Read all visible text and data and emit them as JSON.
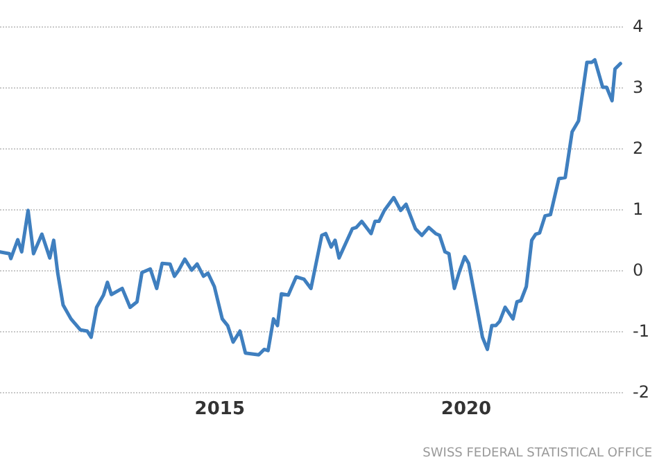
{
  "chart_data": {
    "type": "line",
    "x": [
      2010.54,
      2010.73,
      2010.76,
      2010.9,
      2010.98,
      2011.11,
      2011.22,
      2011.39,
      2011.55,
      2011.63,
      2011.71,
      2011.82,
      2011.98,
      2012.17,
      2012.31,
      2012.39,
      2012.5,
      2012.64,
      2012.72,
      2012.8,
      2013.02,
      2013.18,
      2013.32,
      2013.42,
      2013.59,
      2013.72,
      2013.83,
      2013.99,
      2014.08,
      2014.16,
      2014.29,
      2014.43,
      2014.54,
      2014.67,
      2014.76,
      2014.89,
      2015.05,
      2015.16,
      2015.27,
      2015.41,
      2015.52,
      2015.79,
      2015.9,
      2015.98,
      2016.09,
      2016.17,
      2016.25,
      2016.39,
      2016.55,
      2016.71,
      2016.85,
      2017.07,
      2017.15,
      2017.26,
      2017.34,
      2017.42,
      2017.69,
      2017.77,
      2017.88,
      2018.07,
      2018.15,
      2018.23,
      2018.34,
      2018.53,
      2018.67,
      2018.78,
      2018.97,
      2019.1,
      2019.24,
      2019.38,
      2019.46,
      2019.57,
      2019.65,
      2019.76,
      2019.86,
      2019.97,
      2020.05,
      2020.19,
      2020.33,
      2020.43,
      2020.52,
      2020.6,
      2020.68,
      2020.79,
      2020.95,
      2021.03,
      2021.11,
      2021.22,
      2021.33,
      2021.41,
      2021.49,
      2021.6,
      2021.71,
      2021.88,
      2022.01,
      2022.15,
      2022.28,
      2022.45,
      2022.55,
      2022.61,
      2022.77,
      2022.85,
      2022.96,
      2023.02,
      2023.13
    ],
    "series": [
      {
        "color": "#3f7fbf",
        "values": [
          0.3,
          0.27,
          0.19,
          0.5,
          0.3,
          0.98,
          0.27,
          0.59,
          0.2,
          0.49,
          -0.04,
          -0.57,
          -0.8,
          -0.98,
          -1.0,
          -1.1,
          -0.61,
          -0.41,
          -0.2,
          -0.4,
          -0.3,
          -0.61,
          -0.52,
          -0.04,
          0.02,
          -0.3,
          0.11,
          0.1,
          -0.1,
          -0.01,
          0.18,
          0.0,
          0.1,
          -0.1,
          -0.05,
          -0.27,
          -0.8,
          -0.91,
          -1.18,
          -1.0,
          -1.36,
          -1.39,
          -1.3,
          -1.32,
          -0.8,
          -0.91,
          -0.39,
          -0.41,
          -0.11,
          -0.15,
          -0.3,
          0.57,
          0.6,
          0.38,
          0.49,
          0.2,
          0.68,
          0.7,
          0.8,
          0.6,
          0.8,
          0.8,
          0.98,
          1.19,
          0.98,
          1.08,
          0.68,
          0.57,
          0.7,
          0.6,
          0.57,
          0.3,
          0.27,
          -0.3,
          -0.03,
          0.22,
          0.11,
          -0.49,
          -1.1,
          -1.3,
          -0.91,
          -0.91,
          -0.84,
          -0.61,
          -0.8,
          -0.52,
          -0.5,
          -0.27,
          0.49,
          0.59,
          0.61,
          0.89,
          0.91,
          1.5,
          1.52,
          2.27,
          2.45,
          3.41,
          3.41,
          3.45,
          3.0,
          3.0,
          2.78,
          3.3,
          3.39
        ]
      }
    ],
    "xlim": [
      2010.54,
      2023.21
    ],
    "xticks": [
      2015,
      2020
    ],
    "ylim": [
      -2,
      4
    ],
    "yticks": [
      -2,
      -1,
      0,
      1,
      2,
      3,
      4
    ],
    "grid": true,
    "marker": "none",
    "line_style": "solid",
    "annotations": [
      "SWISS FEDERAL STATISTICAL OFFICE"
    ]
  }
}
